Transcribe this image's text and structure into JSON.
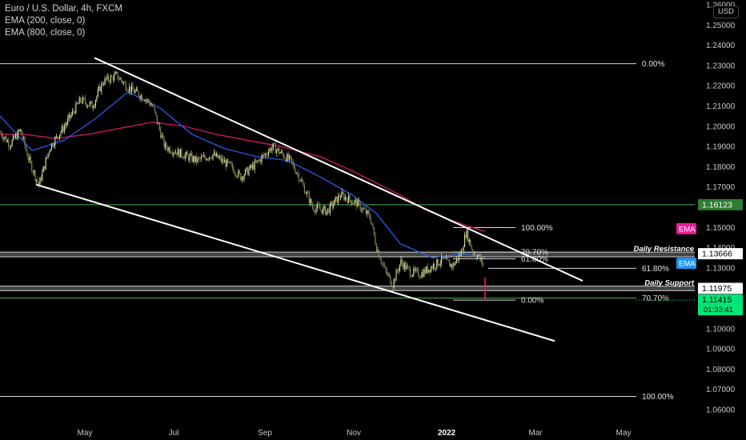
{
  "legend": {
    "title": "Euro / U.S. Dollar, 4h, FXCM",
    "ema_fast": "EMA (200, close, 0)",
    "ema_slow": "EMA (800, close, 0)"
  },
  "currency_label": "USD",
  "colors": {
    "background": "#000000",
    "candle_up": "#d8e2a2",
    "candle_down": "#8a8a58",
    "ema_fast": "#2962ff",
    "ema_slow": "#c2185b",
    "channel": "#ffffff",
    "horizontal_line": "#4caf50",
    "current_price": "#00e676",
    "current_bar": "#ff1744",
    "ema_tag_pink": "#e91e9c",
    "ema_tag_blue": "#2196f3"
  },
  "chart_data": {
    "type": "candlestick",
    "symbol": "Euro / U.S. Dollar",
    "timeframe": "4h",
    "source": "FXCM",
    "x_tick_labels": [
      "May",
      "Jul",
      "Sep",
      "Nov",
      "2022",
      "Mar",
      "May"
    ],
    "y_tick_labels": [
      "1.26000",
      "1.25000",
      "1.24000",
      "1.23000",
      "1.22000",
      "1.21000",
      "1.20000",
      "1.19000",
      "1.18000",
      "1.17000",
      "1.16000",
      "1.15000",
      "1.14000",
      "1.13000",
      "1.12000",
      "1.11000",
      "1.10000",
      "1.09000",
      "1.08000",
      "1.07000",
      "1.06000"
    ],
    "ylim": [
      1.055,
      1.263
    ],
    "price_path": [
      [
        0,
        1.197
      ],
      [
        12,
        1.191
      ],
      [
        25,
        1.198
      ],
      [
        35,
        1.184
      ],
      [
        48,
        1.171
      ],
      [
        62,
        1.19
      ],
      [
        80,
        1.2
      ],
      [
        100,
        1.213
      ],
      [
        115,
        1.21
      ],
      [
        128,
        1.222
      ],
      [
        145,
        1.225
      ],
      [
        160,
        1.219
      ],
      [
        180,
        1.214
      ],
      [
        190,
        1.21
      ],
      [
        205,
        1.19
      ],
      [
        222,
        1.187
      ],
      [
        245,
        1.183
      ],
      [
        265,
        1.186
      ],
      [
        288,
        1.18
      ],
      [
        300,
        1.175
      ],
      [
        318,
        1.181
      ],
      [
        340,
        1.19
      ],
      [
        362,
        1.183
      ],
      [
        372,
        1.176
      ],
      [
        390,
        1.16
      ],
      [
        408,
        1.158
      ],
      [
        425,
        1.166
      ],
      [
        445,
        1.162
      ],
      [
        462,
        1.155
      ],
      [
        470,
        1.14
      ],
      [
        480,
        1.129
      ],
      [
        490,
        1.122
      ],
      [
        500,
        1.133
      ],
      [
        512,
        1.128
      ],
      [
        525,
        1.127
      ],
      [
        540,
        1.131
      ],
      [
        552,
        1.134
      ],
      [
        565,
        1.131
      ],
      [
        575,
        1.137
      ],
      [
        582,
        1.148
      ],
      [
        590,
        1.138
      ],
      [
        598,
        1.135
      ],
      [
        603,
        1.132
      ],
      [
        606,
        1.125
      ]
    ],
    "last_bar": {
      "open": 1.125,
      "close": 1.1142
    },
    "ema_200": [
      [
        0,
        1.205
      ],
      [
        40,
        1.188
      ],
      [
        80,
        1.193
      ],
      [
        120,
        1.204
      ],
      [
        160,
        1.217
      ],
      [
        200,
        1.209
      ],
      [
        240,
        1.196
      ],
      [
        280,
        1.189
      ],
      [
        320,
        1.185
      ],
      [
        360,
        1.183
      ],
      [
        400,
        1.175
      ],
      [
        440,
        1.166
      ],
      [
        470,
        1.157
      ],
      [
        500,
        1.142
      ],
      [
        540,
        1.135
      ],
      [
        580,
        1.137
      ],
      [
        606,
        1.135
      ]
    ],
    "ema_800": [
      [
        0,
        1.196
      ],
      [
        30,
        1.196
      ],
      [
        70,
        1.194
      ],
      [
        110,
        1.196
      ],
      [
        150,
        1.199
      ],
      [
        190,
        1.202
      ],
      [
        230,
        1.2
      ],
      [
        270,
        1.196
      ],
      [
        310,
        1.193
      ],
      [
        350,
        1.19
      ],
      [
        400,
        1.185
      ],
      [
        440,
        1.178
      ],
      [
        470,
        1.172
      ],
      [
        500,
        1.166
      ],
      [
        530,
        1.159
      ],
      [
        560,
        1.154
      ],
      [
        590,
        1.15
      ],
      [
        606,
        1.148
      ]
    ],
    "trend_channel": [
      {
        "x1": 118,
        "y1": 1.2338,
        "x2": 728,
        "y2": 1.1236
      },
      {
        "x1": 45,
        "y1": 1.1712,
        "x2": 693,
        "y2": 1.0939
      }
    ],
    "support_resistance_zones": [
      {
        "label": "Daily Resistance",
        "y_top": 1.1378,
        "y_bottom": 1.1355,
        "price_tag": "1.13666"
      },
      {
        "label": "Daily Support",
        "y_top": 1.121,
        "y_bottom": 1.1188,
        "price_tag": "1.11975"
      }
    ],
    "horizontal_line": {
      "value": 1.16123,
      "price_tag": "1.16123"
    },
    "fib_large": [
      {
        "label": "0.00%",
        "value": 1.2309
      },
      {
        "label": "61.80%",
        "value": 1.1298
      },
      {
        "label": "70.70%",
        "value": 1.1151
      },
      {
        "label": "100.00%",
        "value": 1.0665
      }
    ],
    "fib_small": [
      {
        "label": "100.00%",
        "value": 1.1499
      },
      {
        "label": "70.70%",
        "value": 1.1378
      },
      {
        "label": "61.80%",
        "value": 1.1345
      },
      {
        "label": "0.00%",
        "value": 1.1141
      }
    ],
    "ema_tags": [
      "EMA",
      "EMA"
    ],
    "current_price": {
      "value": "1.11415",
      "countdown": "01:33:41"
    }
  }
}
